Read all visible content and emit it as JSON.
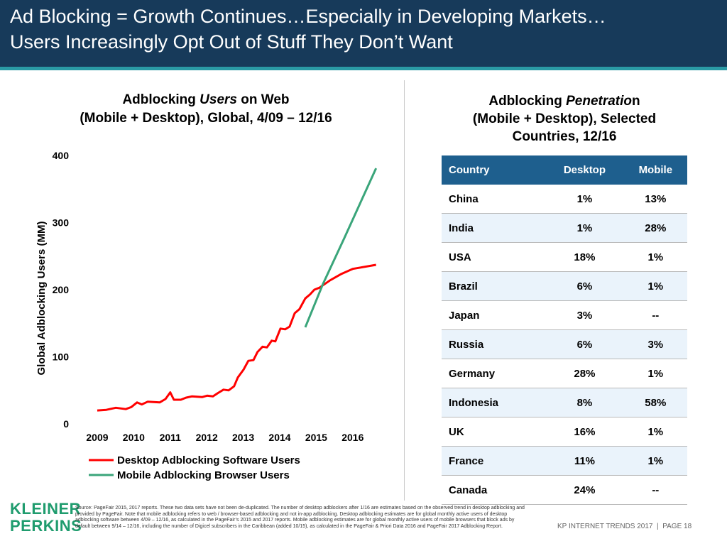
{
  "header": {
    "title_lines": [
      "Ad Blocking = Growth Continues…Especially in Developing Markets…",
      "Users Increasingly Opt Out of Stuff They Don’t Want"
    ]
  },
  "chart_data": {
    "type": "line",
    "title": {
      "line1": [
        "Adblocking ",
        "Users",
        " on Web"
      ],
      "line2": "(Mobile + Desktop), Global, 4/09 – 12/16"
    },
    "y_label": "Global Adblocking Users (MM)",
    "xlim": [
      2008.67,
      2016.84
    ],
    "xticks": [
      2009,
      2010,
      2011,
      2012,
      2013,
      2014,
      2015,
      2016
    ],
    "ylim": [
      0,
      400
    ],
    "yticks": [
      0,
      100,
      200,
      300,
      400
    ],
    "series": [
      {
        "name": "Desktop Adblocking Software Users",
        "color": "#ff0000",
        "x": [
          2009.0,
          2009.25,
          2009.51,
          2009.78,
          2009.93,
          2010.09,
          2010.22,
          2010.38,
          2010.71,
          2010.87,
          2011.0,
          2011.1,
          2011.29,
          2011.43,
          2011.59,
          2011.88,
          2012.01,
          2012.17,
          2012.31,
          2012.46,
          2012.6,
          2012.75,
          2012.85,
          2013.01,
          2013.14,
          2013.28,
          2013.39,
          2013.53,
          2013.65,
          2013.78,
          2013.88,
          2014.02,
          2014.15,
          2014.27,
          2014.41,
          2014.54,
          2014.7,
          2014.83,
          2014.95,
          2015.09,
          2015.38,
          2015.67,
          2016.0,
          2016.64
        ],
        "values": [
          20,
          21,
          24,
          22,
          25,
          32,
          29,
          33,
          32,
          37,
          47,
          36,
          36,
          39,
          41,
          40,
          42,
          41,
          46,
          51,
          50,
          56,
          69,
          81,
          94,
          95,
          107,
          115,
          114,
          124,
          123,
          142,
          141,
          145,
          165,
          171,
          187,
          193,
          200,
          203,
          214,
          223,
          231,
          237
        ]
      },
      {
        "name": "Mobile Adblocking Browser Users",
        "color": "#3aa57a",
        "x": [
          2014.7,
          2015.18,
          2015.77,
          2016.64
        ],
        "values": [
          144,
          208,
          277,
          381
        ]
      }
    ]
  },
  "table": {
    "title": {
      "line1": [
        "Adblocking ",
        "Penetratio",
        "n"
      ],
      "line2": "(Mobile + Desktop), Selected",
      "line3": "Countries, 12/16"
    },
    "columns": [
      "Country",
      "Desktop",
      "Mobile"
    ],
    "rows": [
      [
        "China",
        "1%",
        "13%"
      ],
      [
        "India",
        "1%",
        "28%"
      ],
      [
        "USA",
        "18%",
        "1%"
      ],
      [
        "Brazil",
        "6%",
        "1%"
      ],
      [
        "Japan",
        "3%",
        "--"
      ],
      [
        "Russia",
        "6%",
        "3%"
      ],
      [
        "Germany",
        "28%",
        "1%"
      ],
      [
        "Indonesia",
        "8%",
        "58%"
      ],
      [
        "UK",
        "16%",
        "1%"
      ],
      [
        "France",
        "11%",
        "1%"
      ],
      [
        "Canada",
        "24%",
        "--"
      ]
    ]
  },
  "footer": {
    "logo": [
      "KLEINER",
      "PERKINS"
    ],
    "source": "Source: PageFair 2015, 2017 reports. These two data sets have not been de-duplicated. The number of desktop adblockers after 1/16 are estimates based on the observed trend in desktop adblocking and provided by PageFair. Note that mobile adblocking refers to web / browser-based adblocking and not in-app adblocking. Desktop adblocking estimates are for global monthly active users of desktop adblocking software between 4/09 – 12/16, as calculated in the PageFair’s 2015 and 2017 reports. Mobile adblocking estimates are for global monthly active users of mobile browsers that block ads by default between 9/14 – 12/16, including the number of Digicel subscribers in the Caribbean (added 10/15), as calculated in the PageFair & Priori Data 2016 and PageFair 2017 Adblocking Report.",
    "page": "KP INTERNET TRENDS 2017  |  PAGE 18"
  }
}
